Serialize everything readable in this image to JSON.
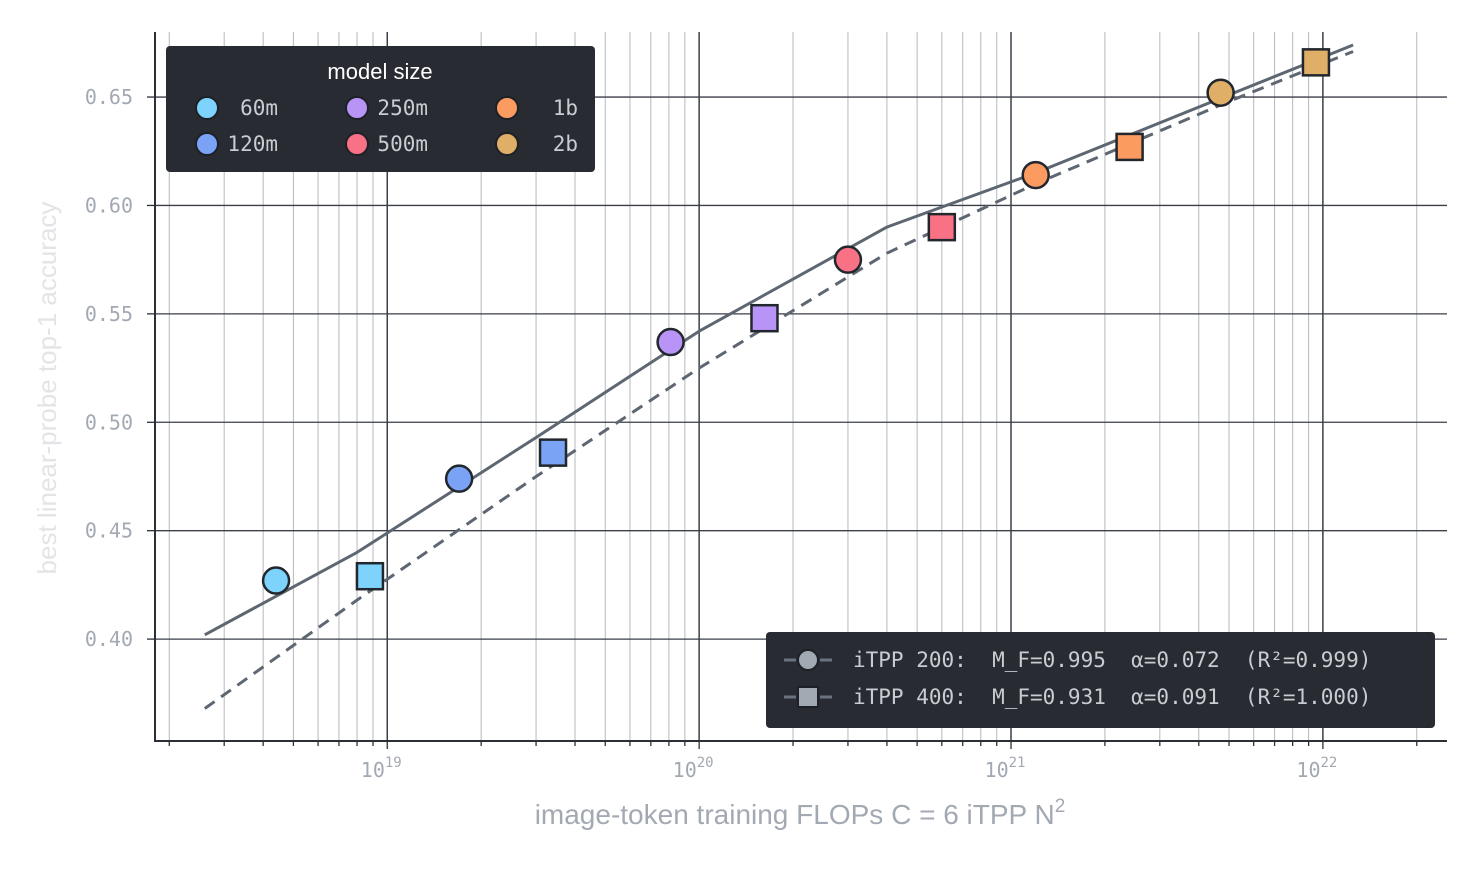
{
  "chart_data": {
    "type": "scatter",
    "title": "",
    "xlabel": "image-token training FLOPs   C = 6 iTPP N",
    "xlabel_superscript": "2",
    "ylabel": "best linear-probe top-1 accuracy",
    "x_scale": "log",
    "xlim": [
      1.8e+18,
      2.5e+22
    ],
    "ylim": [
      0.353,
      0.68
    ],
    "grid": true,
    "y_ticks": [
      {
        "value": 0.4,
        "label": "0.40"
      },
      {
        "value": 0.45,
        "label": "0.45"
      },
      {
        "value": 0.5,
        "label": "0.50"
      },
      {
        "value": 0.55,
        "label": "0.55"
      },
      {
        "value": 0.6,
        "label": "0.60"
      },
      {
        "value": 0.65,
        "label": "0.65"
      }
    ],
    "x_ticks": [
      {
        "value": 1e+19,
        "base": "10",
        "exp": "19"
      },
      {
        "value": 1e+20,
        "base": "10",
        "exp": "20"
      },
      {
        "value": 1e+21,
        "base": "10",
        "exp": "21"
      },
      {
        "value": 1e+22,
        "base": "10",
        "exp": "22"
      }
    ],
    "size_legend": {
      "title": "model size",
      "placement": "top-left",
      "entries": [
        {
          "label": "60m",
          "color": "#7dd3fc"
        },
        {
          "label": "250m",
          "color": "#b794f6"
        },
        {
          "label": "1b",
          "color": "#fb9b5f"
        },
        {
          "label": "120m",
          "color": "#7ba3f5"
        },
        {
          "label": "500m",
          "color": "#f87185"
        },
        {
          "label": "2b",
          "color": "#dfae67"
        }
      ]
    },
    "fit_legend": {
      "placement": "bottom-right",
      "entries": [
        {
          "label": "iTPP 200:  M_F=0.995  α=0.072  (R²=0.999)",
          "marker": "circle"
        },
        {
          "label": "iTPP 400:  M_F=0.931  α=0.091  (R²=1.000)",
          "marker": "square"
        }
      ]
    },
    "series": [
      {
        "name": "iTPP 200",
        "marker": "circle",
        "fit": {
          "M_F": 0.995,
          "alpha": 0.072,
          "R2": 0.999,
          "line": "solid"
        },
        "points": [
          {
            "x": 4.4e+18,
            "y": 0.427,
            "size": "60m"
          },
          {
            "x": 1.7e+19,
            "y": 0.474,
            "size": "120m"
          },
          {
            "x": 8.1e+19,
            "y": 0.537,
            "size": "250m"
          },
          {
            "x": 3e+20,
            "y": 0.575,
            "size": "500m"
          },
          {
            "x": 1.2e+21,
            "y": 0.614,
            "size": "1b"
          },
          {
            "x": 4.7e+21,
            "y": 0.652,
            "size": "2b"
          }
        ]
      },
      {
        "name": "iTPP 400",
        "marker": "square",
        "fit": {
          "M_F": 0.931,
          "alpha": 0.091,
          "R2": 1.0,
          "line": "dashed"
        },
        "points": [
          {
            "x": 8.8e+18,
            "y": 0.429,
            "size": "60m"
          },
          {
            "x": 3.4e+19,
            "y": 0.486,
            "size": "120m"
          },
          {
            "x": 1.62e+20,
            "y": 0.548,
            "size": "250m"
          },
          {
            "x": 6e+20,
            "y": 0.59,
            "size": "500m"
          },
          {
            "x": 2.4e+21,
            "y": 0.627,
            "size": "1b"
          },
          {
            "x": 9.5e+21,
            "y": 0.666,
            "size": "2b"
          }
        ]
      }
    ],
    "fit_lines": [
      {
        "series": "iTPP 200",
        "style": "solid",
        "points": [
          [
            2.6e+18,
            0.402
          ],
          [
            8e+18,
            0.44
          ],
          [
            3e+19,
            0.493
          ],
          [
            1e+20,
            0.542
          ],
          [
            4e+20,
            0.59
          ],
          [
            1.2e+21,
            0.615
          ],
          [
            5e+21,
            0.651
          ],
          [
            1.25e+22,
            0.674
          ]
        ]
      },
      {
        "series": "iTPP 400",
        "style": "dashed",
        "points": [
          [
            2.6e+18,
            0.368
          ],
          [
            8e+18,
            0.418
          ],
          [
            3e+19,
            0.475
          ],
          [
            1e+20,
            0.525
          ],
          [
            4e+20,
            0.578
          ],
          [
            1.2e+21,
            0.61
          ],
          [
            5e+21,
            0.648
          ],
          [
            1.25e+22,
            0.671
          ]
        ]
      }
    ],
    "colors": {
      "fit_line": "#5e6672",
      "marker_stroke": "#22262d",
      "legend_bg": "#282b31",
      "legend_marker_gray": "#a3a9b3"
    }
  }
}
